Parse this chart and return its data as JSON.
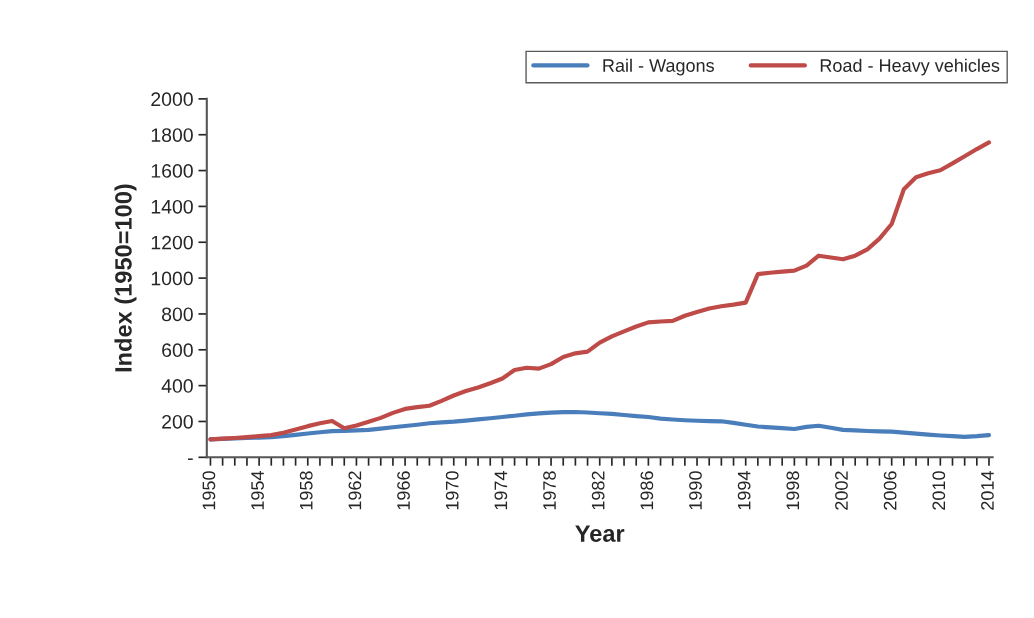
{
  "chart_data": {
    "type": "line",
    "xlabel": "Year",
    "ylabel": "Index (1950=100)",
    "categories": [
      "1950",
      null,
      null,
      null,
      "1954",
      null,
      null,
      null,
      "1958",
      null,
      null,
      null,
      "1962",
      null,
      null,
      null,
      "1966",
      null,
      null,
      null,
      "1970",
      null,
      null,
      null,
      "1974",
      null,
      null,
      null,
      "1978",
      null,
      null,
      null,
      "1982",
      null,
      null,
      null,
      "1986",
      null,
      null,
      null,
      "1990",
      null,
      null,
      null,
      "1994",
      null,
      null,
      null,
      "1998",
      null,
      null,
      null,
      "2002",
      null,
      null,
      null,
      "2006",
      null,
      null,
      null,
      "2010",
      null,
      null,
      null,
      "2014"
    ],
    "series": [
      {
        "name": "Rail - Wagons",
        "color": "#4a7ebb",
        "values": [
          100,
          103,
          105,
          108,
          110,
          112,
          118,
          125,
          133,
          140,
          146,
          148,
          150,
          153,
          160,
          168,
          175,
          182,
          190,
          195,
          199,
          205,
          212,
          218,
          225,
          232,
          240,
          245,
          249,
          252,
          253,
          250,
          246,
          242,
          236,
          230,
          225,
          216,
          211,
          207,
          204,
          202,
          201,
          192,
          182,
          172,
          167,
          163,
          158,
          170,
          176,
          165,
          153,
          150,
          147,
          145,
          143,
          138,
          132,
          127,
          122,
          118,
          114,
          118,
          124
        ]
      },
      {
        "name": "Road - Heavy vehicles",
        "color": "#be4b48",
        "values": [
          100,
          104,
          108,
          113,
          118,
          124,
          137,
          155,
          174,
          190,
          203,
          162,
          178,
          198,
          220,
          248,
          270,
          280,
          288,
          315,
          345,
          370,
          390,
          413,
          440,
          487,
          500,
          495,
          520,
          560,
          580,
          590,
          640,
          675,
          703,
          730,
          753,
          758,
          761,
          790,
          811,
          830,
          843,
          852,
          863,
          1022,
          1030,
          1036,
          1042,
          1070,
          1125,
          1115,
          1105,
          1125,
          1160,
          1220,
          1302,
          1496,
          1563,
          1585,
          1602,
          1640,
          1680,
          1720,
          1757
        ]
      }
    ],
    "ylim": [
      0,
      2000
    ],
    "yticks": [
      {
        "value": 0,
        "label": "-"
      },
      200,
      400,
      600,
      800,
      1000,
      1200,
      1400,
      1600,
      1800,
      2000
    ],
    "legend": "top right",
    "grid": false,
    "marker": "none",
    "line_style": "solid"
  }
}
